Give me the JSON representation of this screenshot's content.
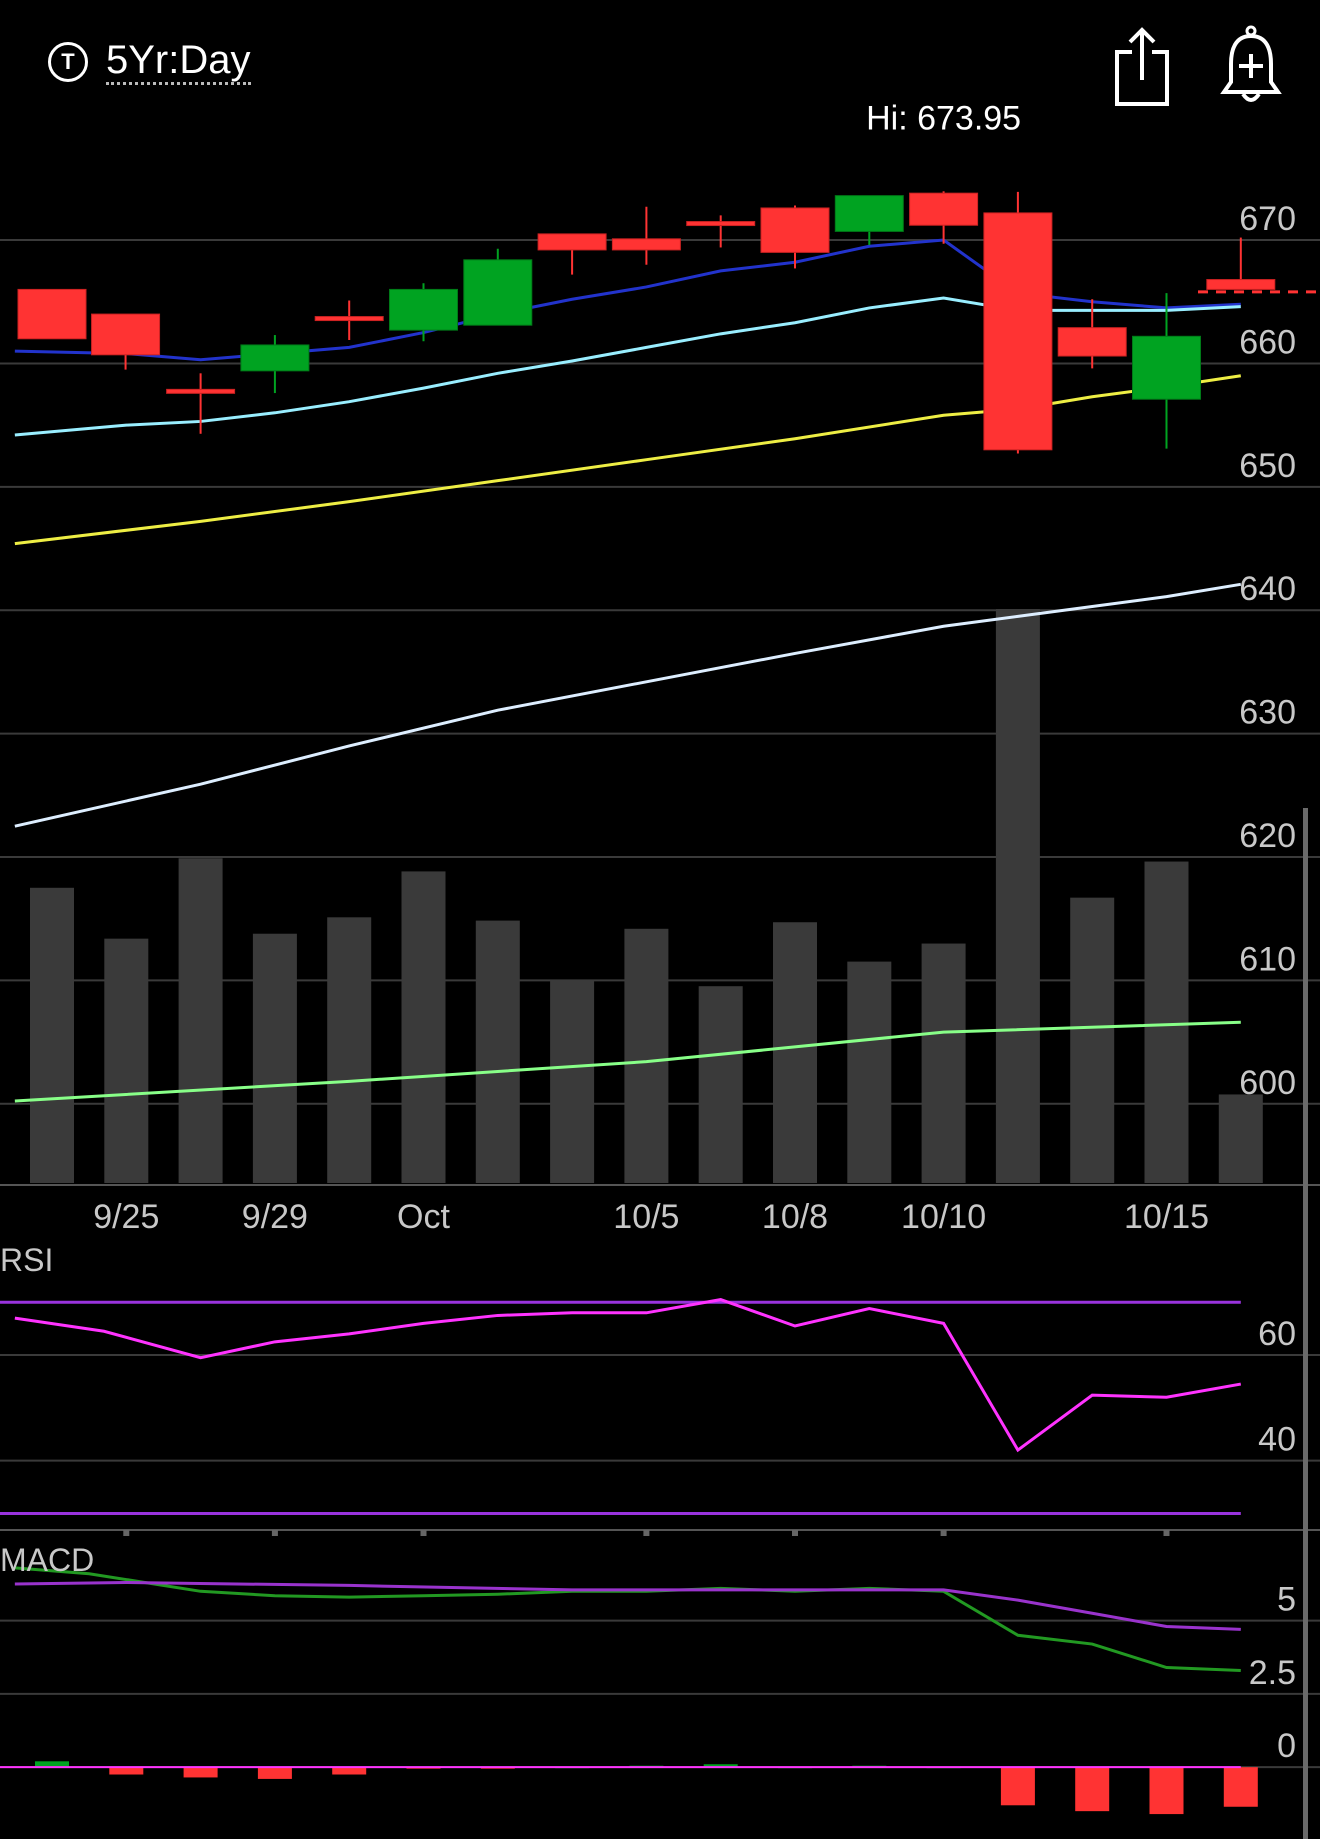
{
  "header": {
    "period_icon": "T",
    "period_label": "5Yr:Day",
    "share_icon": "share-icon",
    "alert_icon": "bell-plus-icon"
  },
  "colors": {
    "up": "#00a321",
    "down": "#ff3333",
    "ma_blue": "#2233cc",
    "ma_cyan": "#99eeff",
    "ma_yellow": "#eeee44",
    "ma_white": "#ddeeff",
    "vol_ma_green": "#88ff88",
    "rsi": "#ff33ff",
    "rsi_band": "#9933dd",
    "macd_line": "#229922",
    "signal_line": "#9933cc",
    "volume": "#3a3a3a",
    "grid": "#3a3a3a"
  },
  "chart_data": [
    {
      "type": "candlestick",
      "title": "",
      "hi_annotation": "Hi: 673.95",
      "x_tick_labels": [
        "9/25",
        "9/29",
        "Oct",
        "10/5",
        "10/8",
        "10/10",
        "10/15"
      ],
      "x_tick_index": [
        1,
        3,
        5,
        8,
        10,
        12,
        15
      ],
      "y_ticks": [
        600,
        610,
        620,
        630,
        640,
        650,
        660,
        670
      ],
      "ylim": [
        593.5,
        679
      ],
      "candles": [
        {
          "i": 0,
          "o": 666,
          "c": 662,
          "h": 666,
          "l": 662
        },
        {
          "i": 0.99,
          "o": 664,
          "c": 660.7,
          "h": 664,
          "l": 659.5
        },
        {
          "i": 2,
          "o": 657.9,
          "c": 657.9,
          "h": 659.2,
          "l": 654.3
        },
        {
          "i": 3,
          "o": 659.4,
          "c": 661.5,
          "h": 662.3,
          "l": 657.6
        },
        {
          "i": 4,
          "o": 663.8,
          "c": 663.8,
          "h": 665.1,
          "l": 661.9
        },
        {
          "i": 5,
          "o": 662.7,
          "c": 666,
          "h": 666.5,
          "l": 661.8
        },
        {
          "i": 6,
          "o": 663.1,
          "c": 668.4,
          "h": 669.3,
          "l": 663.1
        },
        {
          "i": 7,
          "o": 670.5,
          "c": 669.2,
          "h": 670.5,
          "l": 667.2
        },
        {
          "i": 8,
          "o": 670.1,
          "c": 669.2,
          "h": 672.7,
          "l": 668
        },
        {
          "i": 9,
          "o": 671.5,
          "c": 671.5,
          "h": 672,
          "l": 669.4
        },
        {
          "i": 10,
          "o": 672.6,
          "c": 669,
          "h": 672.8,
          "l": 667.7
        },
        {
          "i": 11,
          "o": 670.7,
          "c": 673.6,
          "h": 673.6,
          "l": 669.6
        },
        {
          "i": 12,
          "o": 673.8,
          "c": 671.2,
          "h": 673.95,
          "l": 669.7
        },
        {
          "i": 13,
          "o": 672.2,
          "c": 653,
          "h": 673.9,
          "l": 652.7
        },
        {
          "i": 14,
          "o": 662.9,
          "c": 660.6,
          "h": 665.2,
          "l": 659.6
        },
        {
          "i": 15,
          "o": 657.1,
          "c": 662.2,
          "h": 665.7,
          "l": 653.1
        },
        {
          "i": 16,
          "o": 666.8,
          "c": 666,
          "h": 670.2,
          "l": 666
        }
      ],
      "last_price_line": 665.8,
      "moving_averages": [
        {
          "color_key": "ma_blue",
          "points": [
            [
              -0.5,
              661
            ],
            [
              1,
              660.8
            ],
            [
              2,
              660.3
            ],
            [
              4,
              661.3
            ],
            [
              5,
              662.5
            ],
            [
              6,
              664
            ],
            [
              7,
              665.2
            ],
            [
              8,
              666.2
            ],
            [
              9,
              667.5
            ],
            [
              10,
              668.2
            ],
            [
              11,
              669.5
            ],
            [
              12,
              670
            ],
            [
              13,
              665.7
            ],
            [
              14,
              665
            ],
            [
              15,
              664.5
            ],
            [
              16,
              664.8
            ]
          ]
        },
        {
          "color_key": "ma_cyan",
          "points": [
            [
              -0.5,
              654.2
            ],
            [
              1,
              655
            ],
            [
              2,
              655.3
            ],
            [
              3,
              656
            ],
            [
              4,
              656.9
            ],
            [
              5,
              658
            ],
            [
              6,
              659.2
            ],
            [
              7,
              660.2
            ],
            [
              8,
              661.3
            ],
            [
              9,
              662.4
            ],
            [
              10,
              663.3
            ],
            [
              11,
              664.5
            ],
            [
              12,
              665.3
            ],
            [
              13,
              664.3
            ],
            [
              14,
              664.3
            ],
            [
              15,
              664.3
            ],
            [
              16,
              664.6
            ]
          ]
        },
        {
          "color_key": "ma_yellow",
          "points": [
            [
              -0.5,
              645.4
            ],
            [
              2,
              647.2
            ],
            [
              4,
              648.8
            ],
            [
              6,
              650.5
            ],
            [
              8,
              652.2
            ],
            [
              10,
              653.9
            ],
            [
              12,
              655.8
            ],
            [
              13,
              656.3
            ],
            [
              14,
              657.3
            ],
            [
              15,
              658.1
            ],
            [
              16,
              659
            ]
          ]
        },
        {
          "color_key": "ma_white",
          "points": [
            [
              -0.5,
              622.5
            ],
            [
              2,
              625.9
            ],
            [
              4,
              629
            ],
            [
              6,
              631.9
            ],
            [
              8,
              634.2
            ],
            [
              10,
              636.5
            ],
            [
              12,
              638.7
            ],
            [
              13,
              639.5
            ],
            [
              14,
              640.3
            ],
            [
              15,
              641.1
            ],
            [
              16,
              642.1
            ]
          ]
        }
      ],
      "volume_bars": [
        {
          "i": 0,
          "v": 9
        },
        {
          "i": 1,
          "v": 7.45
        },
        {
          "i": 2,
          "v": 9.9
        },
        {
          "i": 3,
          "v": 7.6
        },
        {
          "i": 4,
          "v": 8.1
        },
        {
          "i": 5,
          "v": 9.5
        },
        {
          "i": 6,
          "v": 8
        },
        {
          "i": 7,
          "v": 6.2
        },
        {
          "i": 8,
          "v": 7.75
        },
        {
          "i": 9,
          "v": 6
        },
        {
          "i": 10,
          "v": 7.95
        },
        {
          "i": 11,
          "v": 6.75
        },
        {
          "i": 12,
          "v": 7.3
        },
        {
          "i": 13,
          "v": 17.5
        },
        {
          "i": 14,
          "v": 8.7
        },
        {
          "i": 15,
          "v": 9.8
        },
        {
          "i": 16,
          "v": 2.7
        }
      ],
      "volume_ma": [
        [
          -0.5,
          2.5
        ],
        [
          4,
          3.1
        ],
        [
          8,
          3.7
        ],
        [
          12,
          4.6
        ],
        [
          16,
          4.9
        ]
      ]
    },
    {
      "type": "line",
      "title": "RSI",
      "y_ticks": [
        40,
        60
      ],
      "ylim": [
        28,
        78
      ],
      "bands": [
        70,
        30
      ],
      "series": [
        {
          "color_key": "rsi",
          "points": [
            [
              -0.5,
              67
            ],
            [
              0.7,
              64.5
            ],
            [
              2,
              59.5
            ],
            [
              3,
              62.5
            ],
            [
              4,
              64
            ],
            [
              5,
              66
            ],
            [
              6,
              67.5
            ],
            [
              7,
              68
            ],
            [
              8,
              68
            ],
            [
              9,
              70.5
            ],
            [
              10,
              65.5
            ],
            [
              11,
              68.8
            ],
            [
              12,
              66
            ],
            [
              13,
              42
            ],
            [
              14,
              52.4
            ],
            [
              15,
              52
            ],
            [
              16,
              54.5
            ]
          ]
        }
      ]
    },
    {
      "type": "line",
      "title": "MACD",
      "y_ticks": [
        5,
        2.5,
        0
      ],
      "ylim": [
        -2.45,
        7.75
      ],
      "zero_line": 0,
      "series": [
        {
          "color_key": "macd_line",
          "points": [
            [
              -0.5,
              6.8
            ],
            [
              0.5,
              6.6
            ],
            [
              2,
              6
            ],
            [
              3,
              5.85
            ],
            [
              4,
              5.8
            ],
            [
              5,
              5.85
            ],
            [
              6,
              5.9
            ],
            [
              7,
              6
            ],
            [
              8,
              6
            ],
            [
              9,
              6.1
            ],
            [
              10,
              6
            ],
            [
              11,
              6.1
            ],
            [
              12,
              6
            ],
            [
              13,
              4.5
            ],
            [
              14,
              4.2
            ],
            [
              15,
              3.4
            ],
            [
              16,
              3.3
            ]
          ]
        },
        {
          "color_key": "signal_line",
          "points": [
            [
              -0.5,
              6.25
            ],
            [
              1,
              6.3
            ],
            [
              4,
              6.2
            ],
            [
              7,
              6.05
            ],
            [
              10,
              6.05
            ],
            [
              12,
              6.05
            ],
            [
              13,
              5.7
            ],
            [
              14,
              5.25
            ],
            [
              15,
              4.8
            ],
            [
              16,
              4.7
            ]
          ]
        }
      ],
      "histogram": [
        {
          "i": 0,
          "v": 0.2
        },
        {
          "i": 1,
          "v": -0.25
        },
        {
          "i": 2,
          "v": -0.35
        },
        {
          "i": 3,
          "v": -0.4
        },
        {
          "i": 4,
          "v": -0.25
        },
        {
          "i": 5,
          "v": -0.05
        },
        {
          "i": 6,
          "v": -0.05
        },
        {
          "i": 7,
          "v": 0
        },
        {
          "i": 8,
          "v": 0.05
        },
        {
          "i": 9,
          "v": 0.1
        },
        {
          "i": 10,
          "v": 0
        },
        {
          "i": 11,
          "v": 0.05
        },
        {
          "i": 12,
          "v": 0
        },
        {
          "i": 13,
          "v": -1.3
        },
        {
          "i": 14,
          "v": -1.5
        },
        {
          "i": 15,
          "v": -1.6
        },
        {
          "i": 16,
          "v": -1.35
        }
      ]
    }
  ]
}
